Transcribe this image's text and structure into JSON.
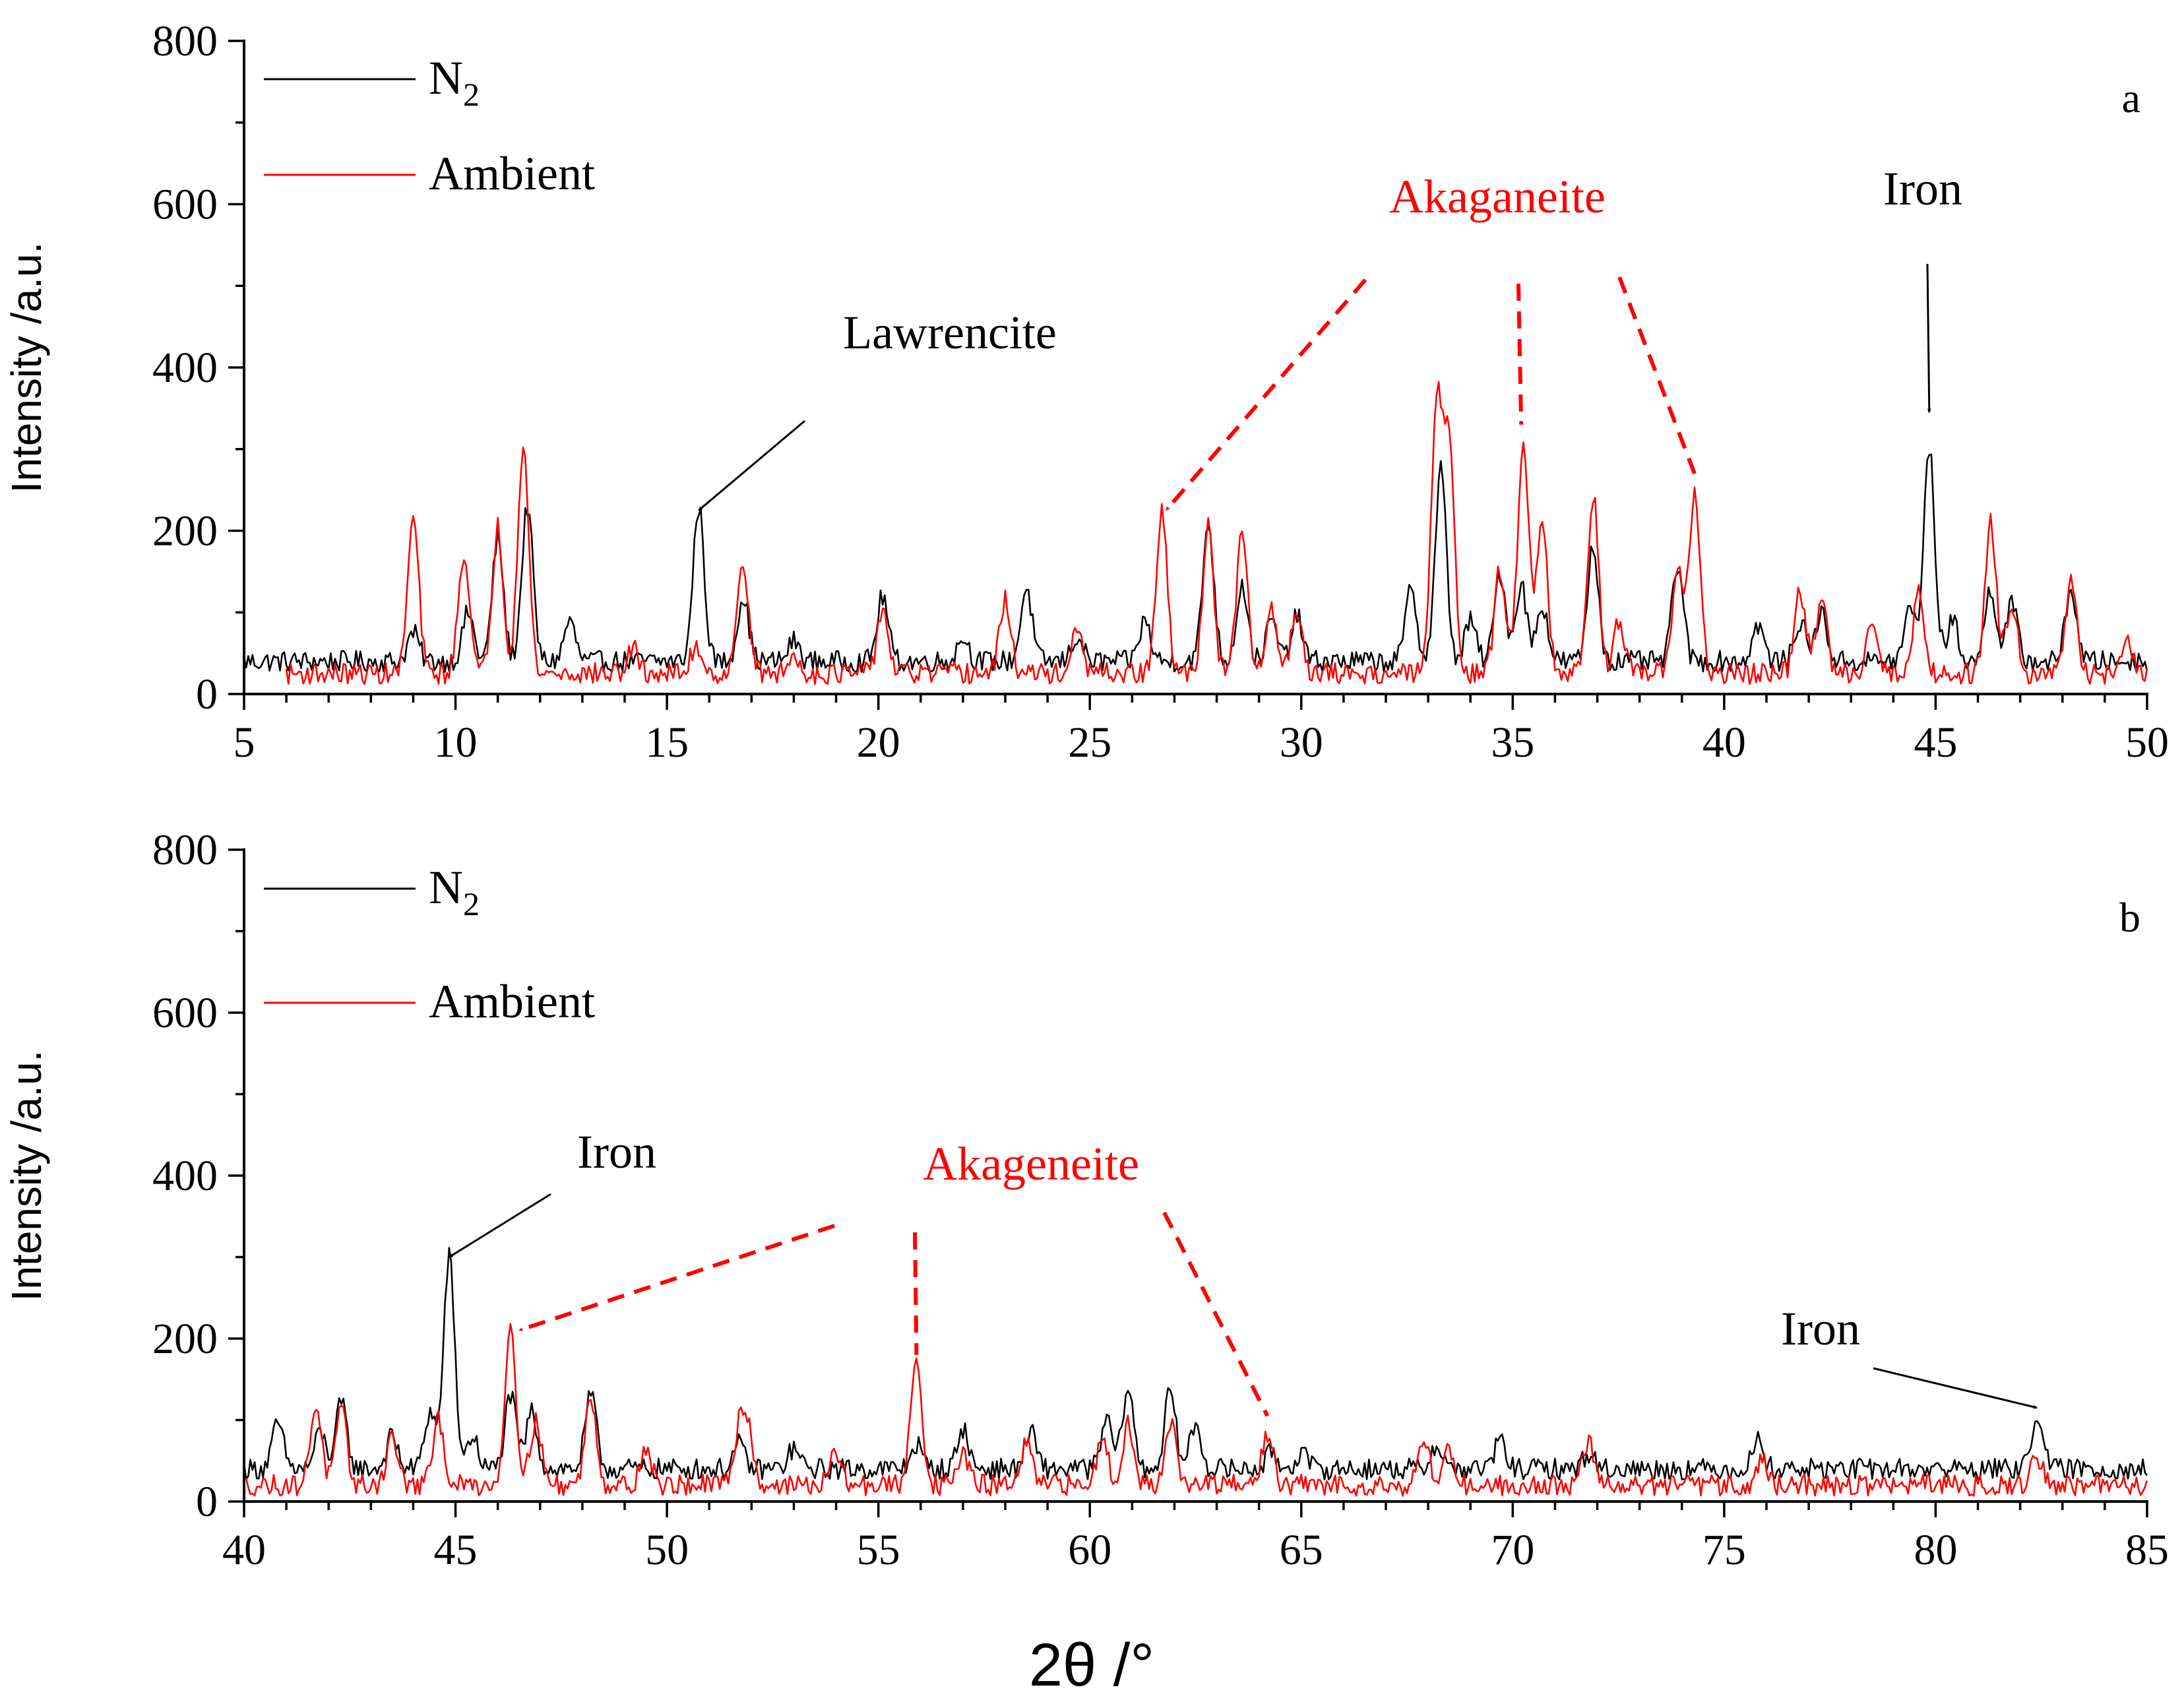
{
  "chart_data": [
    {
      "panel": "a",
      "type": "line",
      "xlabel": "",
      "ylabel": "Intensity /a.u.",
      "xlim": [
        5,
        50
      ],
      "ylim": [
        0,
        800
      ],
      "xticks": [
        "5",
        "10",
        "15",
        "20",
        "25",
        "30",
        "35",
        "40",
        "45",
        "50"
      ],
      "yticks": [
        "0",
        "200",
        "400",
        "600",
        "800"
      ],
      "legend": [
        {
          "name": "N",
          "sub": "2",
          "color": "#000000"
        },
        {
          "name": "Ambient",
          "sub": "",
          "color": "#ff0000"
        }
      ],
      "series": [
        {
          "name": "N2",
          "color": "#000000",
          "baseline": 40,
          "x_start": 5,
          "peaks": [
            [
              9.0,
              35
            ],
            [
              10.3,
              60
            ],
            [
              11.0,
              150
            ],
            [
              11.7,
              190
            ],
            [
              12.7,
              50
            ],
            [
              15.75,
              190
            ],
            [
              16.8,
              80
            ],
            [
              18.0,
              25
            ],
            [
              20.1,
              80
            ],
            [
              22.0,
              30
            ],
            [
              23.5,
              90
            ],
            [
              24.7,
              30
            ],
            [
              26.3,
              50
            ],
            [
              27.8,
              170
            ],
            [
              28.6,
              95
            ],
            [
              29.3,
              50
            ],
            [
              29.9,
              55
            ],
            [
              32.6,
              90
            ],
            [
              33.3,
              235
            ],
            [
              34.0,
              50
            ],
            [
              34.7,
              110
            ],
            [
              35.2,
              95
            ],
            [
              35.7,
              70
            ],
            [
              36.9,
              140
            ],
            [
              38.9,
              120
            ],
            [
              40.8,
              45
            ],
            [
              41.8,
              50
            ],
            [
              42.3,
              60
            ],
            [
              44.4,
              65
            ],
            [
              44.85,
              260
            ],
            [
              45.4,
              50
            ],
            [
              46.3,
              90
            ],
            [
              46.8,
              70
            ],
            [
              48.2,
              90
            ]
          ]
        },
        {
          "name": "Ambient",
          "color": "#ff0000",
          "baseline": 25,
          "x_start": 6,
          "peaks": [
            [
              9.0,
              190
            ],
            [
              10.2,
              150
            ],
            [
              11.0,
              180
            ],
            [
              11.6,
              280
            ],
            [
              14.2,
              30
            ],
            [
              15.7,
              35
            ],
            [
              16.8,
              140
            ],
            [
              18.0,
              20
            ],
            [
              20.1,
              80
            ],
            [
              23.0,
              90
            ],
            [
              24.7,
              50
            ],
            [
              26.7,
              195
            ],
            [
              27.8,
              180
            ],
            [
              28.6,
              170
            ],
            [
              29.3,
              80
            ],
            [
              29.9,
              80
            ],
            [
              33.2,
              325
            ],
            [
              33.5,
              280
            ],
            [
              34.7,
              130
            ],
            [
              35.25,
              290
            ],
            [
              35.7,
              190
            ],
            [
              36.9,
              220
            ],
            [
              37.5,
              60
            ],
            [
              38.9,
              130
            ],
            [
              39.3,
              220
            ],
            [
              41.8,
              100
            ],
            [
              42.3,
              90
            ],
            [
              43.5,
              70
            ],
            [
              44.6,
              100
            ],
            [
              46.3,
              190
            ],
            [
              46.8,
              90
            ],
            [
              48.2,
              110
            ],
            [
              49.5,
              40
            ]
          ]
        }
      ],
      "annotations": [
        {
          "text": "Lawrencite",
          "color": "#000000",
          "style": "solid",
          "target": [
            15.75,
            225
          ]
        },
        {
          "text": "Akaganeite",
          "color": "#ff0000",
          "style": "dashed",
          "target": [
            26.8,
            225
          ]
        },
        {
          "text": "Akaganeite",
          "color": "#ff0000",
          "style": "dashed",
          "target": [
            35.2,
            330
          ]
        },
        {
          "text": "Akaganeite",
          "color": "#ff0000",
          "style": "dashed",
          "target": [
            39.3,
            270
          ]
        },
        {
          "text": "Iron",
          "color": "#000000",
          "style": "solid",
          "target": [
            44.85,
            345
          ]
        }
      ]
    },
    {
      "panel": "b",
      "type": "line",
      "xlabel": "2θ /°",
      "ylabel": "Intensity /a.u.",
      "xlim": [
        40,
        85
      ],
      "ylim": [
        0,
        800
      ],
      "xticks": [
        "40",
        "45",
        "50",
        "55",
        "60",
        "65",
        "70",
        "75",
        "80",
        "85"
      ],
      "yticks": [
        "0",
        "200",
        "400",
        "600",
        "800"
      ],
      "legend": [
        {
          "name": "N",
          "sub": "2",
          "color": "#000000"
        },
        {
          "name": "Ambient",
          "sub": "",
          "color": "#ff0000"
        }
      ],
      "series": [
        {
          "name": "N2",
          "color": "#000000",
          "baseline": 40,
          "x_start": 40,
          "peaks": [
            [
              40.8,
              55
            ],
            [
              41.8,
              45
            ],
            [
              42.3,
              80
            ],
            [
              43.5,
              40
            ],
            [
              44.4,
              70
            ],
            [
              44.85,
              260
            ],
            [
              45.4,
              40
            ],
            [
              46.3,
              90
            ],
            [
              46.8,
              70
            ],
            [
              48.2,
              90
            ],
            [
              51.7,
              30
            ],
            [
              53.0,
              25
            ],
            [
              55.9,
              30
            ],
            [
              57.0,
              50
            ],
            [
              58.6,
              45
            ],
            [
              60.4,
              60
            ],
            [
              60.9,
              100
            ],
            [
              61.9,
              95
            ],
            [
              62.5,
              55
            ],
            [
              64.3,
              20
            ],
            [
              65.0,
              20
            ],
            [
              68.2,
              30
            ],
            [
              69.7,
              35
            ],
            [
              71.8,
              20
            ],
            [
              75.8,
              35
            ],
            [
              82.4,
              70
            ]
          ]
        },
        {
          "name": "Ambient",
          "color": "#ff0000",
          "baseline": 20,
          "x_start": 40,
          "peaks": [
            [
              41.7,
              100
            ],
            [
              42.3,
              90
            ],
            [
              43.5,
              60
            ],
            [
              44.6,
              80
            ],
            [
              46.3,
              195
            ],
            [
              46.9,
              80
            ],
            [
              48.2,
              110
            ],
            [
              49.5,
              45
            ],
            [
              51.7,
              60
            ],
            [
              51.9,
              70
            ],
            [
              54.0,
              40
            ],
            [
              55.9,
              160
            ],
            [
              57.0,
              40
            ],
            [
              58.5,
              50
            ],
            [
              60.3,
              60
            ],
            [
              60.9,
              75
            ],
            [
              61.9,
              80
            ],
            [
              64.2,
              65
            ],
            [
              67.9,
              55
            ],
            [
              68.5,
              45
            ],
            [
              71.8,
              55
            ],
            [
              75.9,
              30
            ],
            [
              82.4,
              35
            ]
          ]
        }
      ],
      "annotations": [
        {
          "text": "Iron",
          "color": "#000000",
          "style": "solid",
          "target": [
            44.85,
            300
          ]
        },
        {
          "text": "Akageneite",
          "color": "#ff0000",
          "style": "dashed",
          "target": [
            46.5,
            210
          ]
        },
        {
          "text": "Akageneite",
          "color": "#ff0000",
          "style": "dashed",
          "target": [
            55.9,
            180
          ]
        },
        {
          "text": "Akageneite",
          "color": "#ff0000",
          "style": "dashed",
          "target": [
            64.2,
            105
          ]
        },
        {
          "text": "Iron",
          "color": "#000000",
          "style": "solid",
          "target": [
            82.4,
            115
          ]
        }
      ]
    }
  ]
}
